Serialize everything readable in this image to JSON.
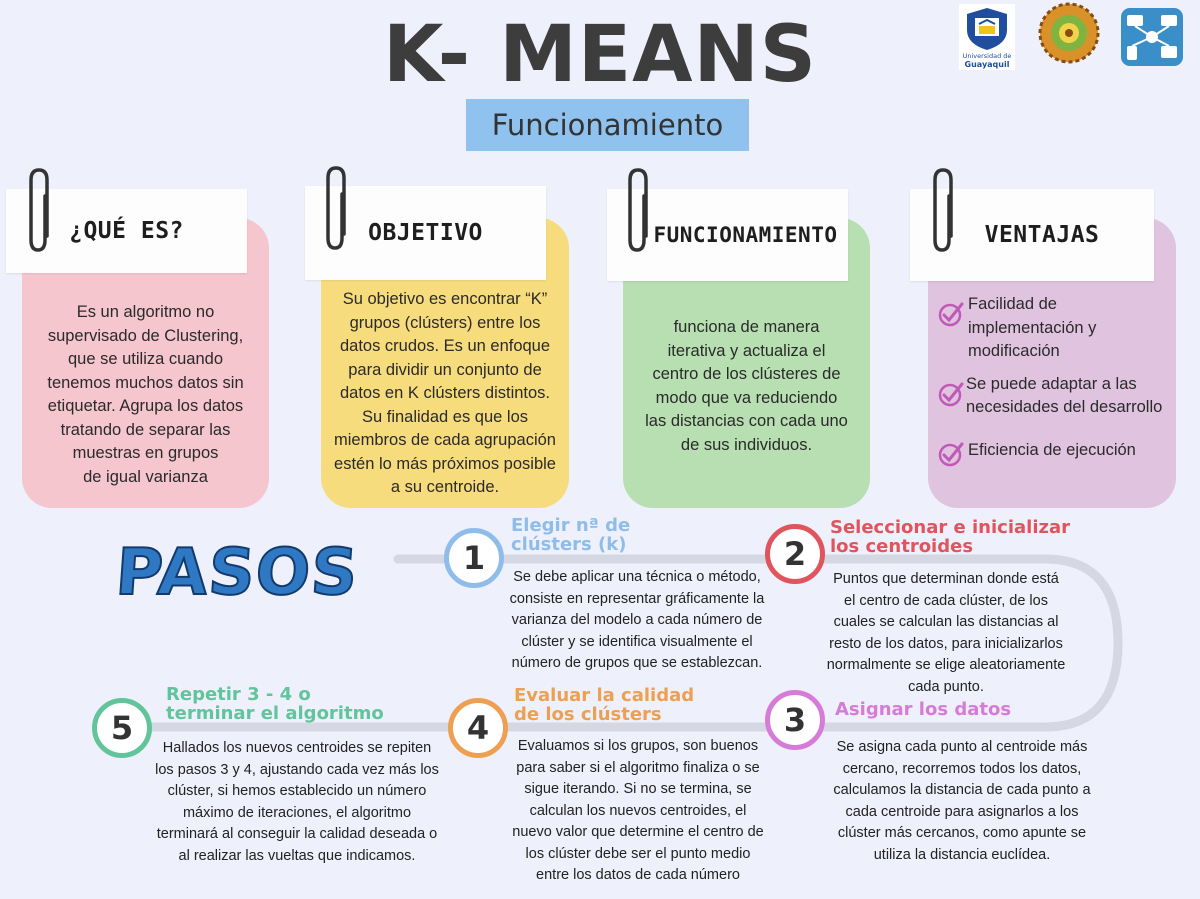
{
  "header": {
    "title": "K- MEANS",
    "subtitle": "Funcionamiento",
    "logo_ug_text_1": "Universidad de",
    "logo_ug_text_2": "Guayaquil"
  },
  "colors": {
    "card_pink": "#f5c6ce",
    "card_yellow": "#f7dc7e",
    "card_green": "#b7dfb1",
    "card_purple": "#e0c3df",
    "step1": "#8fbdea",
    "step2": "#e0545d",
    "step3": "#d77bd8",
    "step4": "#eda051",
    "step5": "#62c49a"
  },
  "cards": [
    {
      "heading": "¿QUÉ ES?",
      "lines": [
        "Es un algoritmo no",
        "supervisado de Clustering,",
        "que se utiliza cuando",
        "tenemos muchos datos sin",
        "etiquetar. Agrupa los datos",
        "tratando de separar las",
        "muestras en grupos",
        "de igual varianza"
      ]
    },
    {
      "heading": "OBJETIVO",
      "lines": [
        "Su objetivo es encontrar “K”",
        "grupos (clústers) entre los",
        "datos crudos. Es un enfoque",
        "para dividir un conjunto de",
        "datos en K clústers distintos.",
        "Su finalidad es que los",
        "miembros de cada agrupación",
        "estén lo más próximos posible",
        "a su centroide."
      ]
    },
    {
      "heading": "FUNCIONAMIENTO",
      "lines": [
        "funciona de manera",
        "iterativa y actualiza el",
        "centro de los clústeres de",
        "modo que va reduciendo",
        "las distancias con cada uno",
        "de sus individuos."
      ]
    },
    {
      "heading": "VENTAJAS",
      "items": [
        [
          "Facilidad de",
          "implementación y",
          "modificación"
        ],
        [
          "Se puede adaptar a las",
          "necesidades del desarrollo"
        ],
        [
          "Eficiencia de ejecución"
        ]
      ]
    }
  ],
  "pasos_title": "PASOS",
  "steps": [
    {
      "number": "1",
      "title_lines": [
        "Elegir nª de",
        "clústers (k)"
      ],
      "lines": [
        "Se debe aplicar una técnica o método,",
        "consiste en representar gráficamente la",
        "varianza del modelo a cada número de",
        "clúster y se identifica visualmente el",
        "número de grupos que se establezcan."
      ]
    },
    {
      "number": "2",
      "title_lines": [
        "Seleccionar e inicializar",
        "los centroides"
      ],
      "lines": [
        "Puntos que determinan donde está",
        "el centro de cada clúster, de los",
        "cuales se calculan las distancias al",
        "resto de los datos, para inicializarlos",
        "normalmente se elige aleatoriamente",
        "cada punto."
      ]
    },
    {
      "number": "3",
      "title_lines": [
        "Asignar los datos"
      ],
      "lines": [
        "Se asigna cada punto al centroide más",
        "cercano, recorremos todos los datos,",
        "calculamos la distancia de cada punto a",
        "cada centroide para asignarlos a los",
        "clúster más cercanos, como apunte se",
        "utiliza la distancia euclídea."
      ]
    },
    {
      "number": "4",
      "title_lines": [
        "Evaluar la calidad",
        "de los clústers"
      ],
      "lines": [
        "Evaluamos si los grupos, son buenos",
        "para saber si el algoritmo finaliza o se",
        "sigue iterando. Si no se termina, se",
        "calculan los nuevos centroides, el",
        "nuevo valor que determine el centro de",
        "los clúster debe ser el punto medio",
        "entre los datos de cada número"
      ]
    },
    {
      "number": "5",
      "title_lines": [
        "Repetir 3 - 4 o",
        "terminar el algoritmo"
      ],
      "lines": [
        "Hallados los nuevos centroides se repiten",
        "los pasos 3 y 4, ajustando cada vez más los",
        "clúster, si hemos establecido un número",
        "máximo de iteraciones, el algoritmo",
        "terminará al conseguir la calidad deseada o",
        "al realizar las vueltas que indicamos."
      ]
    }
  ]
}
